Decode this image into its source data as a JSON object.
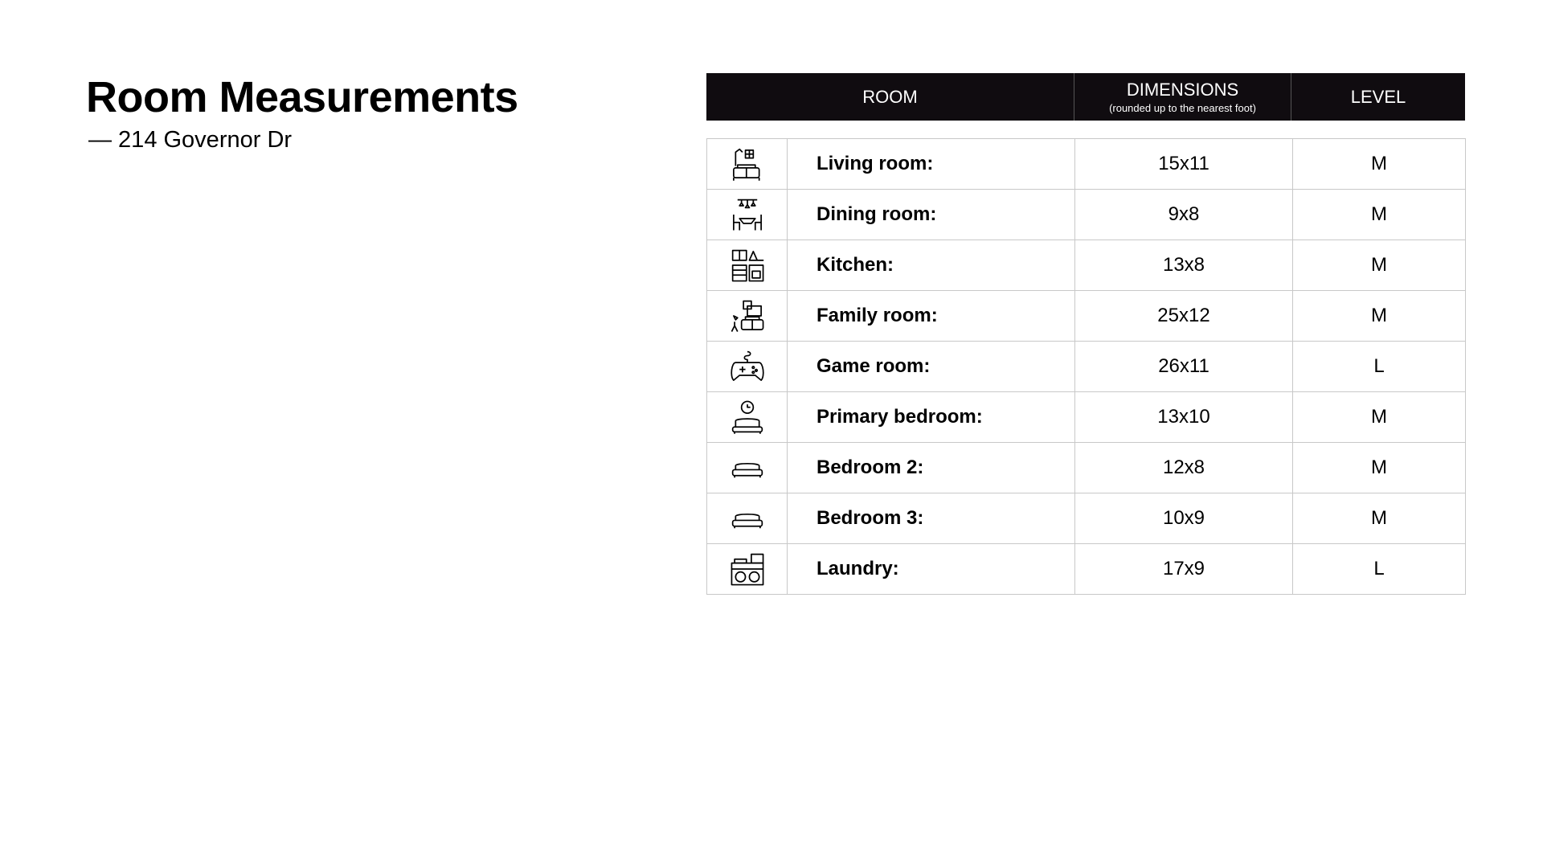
{
  "title": "Room Measurements",
  "subtitle": "— 214 Governor Dr",
  "table": {
    "headers": {
      "room": "ROOM",
      "dimensions": "DIMENSIONS",
      "dimensions_note": "(rounded up to the nearest foot)",
      "level": "LEVEL"
    },
    "rows": [
      {
        "icon": "living-room-icon",
        "room": "Living room:",
        "dimensions": "15x11",
        "level": "M"
      },
      {
        "icon": "dining-room-icon",
        "room": "Dining room:",
        "dimensions": "9x8",
        "level": "M"
      },
      {
        "icon": "kitchen-icon",
        "room": "Kitchen:",
        "dimensions": "13x8",
        "level": "M"
      },
      {
        "icon": "family-room-icon",
        "room": "Family room:",
        "dimensions": "25x12",
        "level": "M"
      },
      {
        "icon": "game-controller-icon",
        "room": "Game room:",
        "dimensions": "26x11",
        "level": "L"
      },
      {
        "icon": "primary-bedroom-icon",
        "room": "Primary bedroom:",
        "dimensions": "13x10",
        "level": "M"
      },
      {
        "icon": "bed-icon",
        "room": "Bedroom 2:",
        "dimensions": "12x8",
        "level": "M"
      },
      {
        "icon": "bed-icon",
        "room": "Bedroom 3:",
        "dimensions": "10x9",
        "level": "M"
      },
      {
        "icon": "laundry-icon",
        "room": "Laundry:",
        "dimensions": "17x9",
        "level": "L"
      }
    ]
  }
}
